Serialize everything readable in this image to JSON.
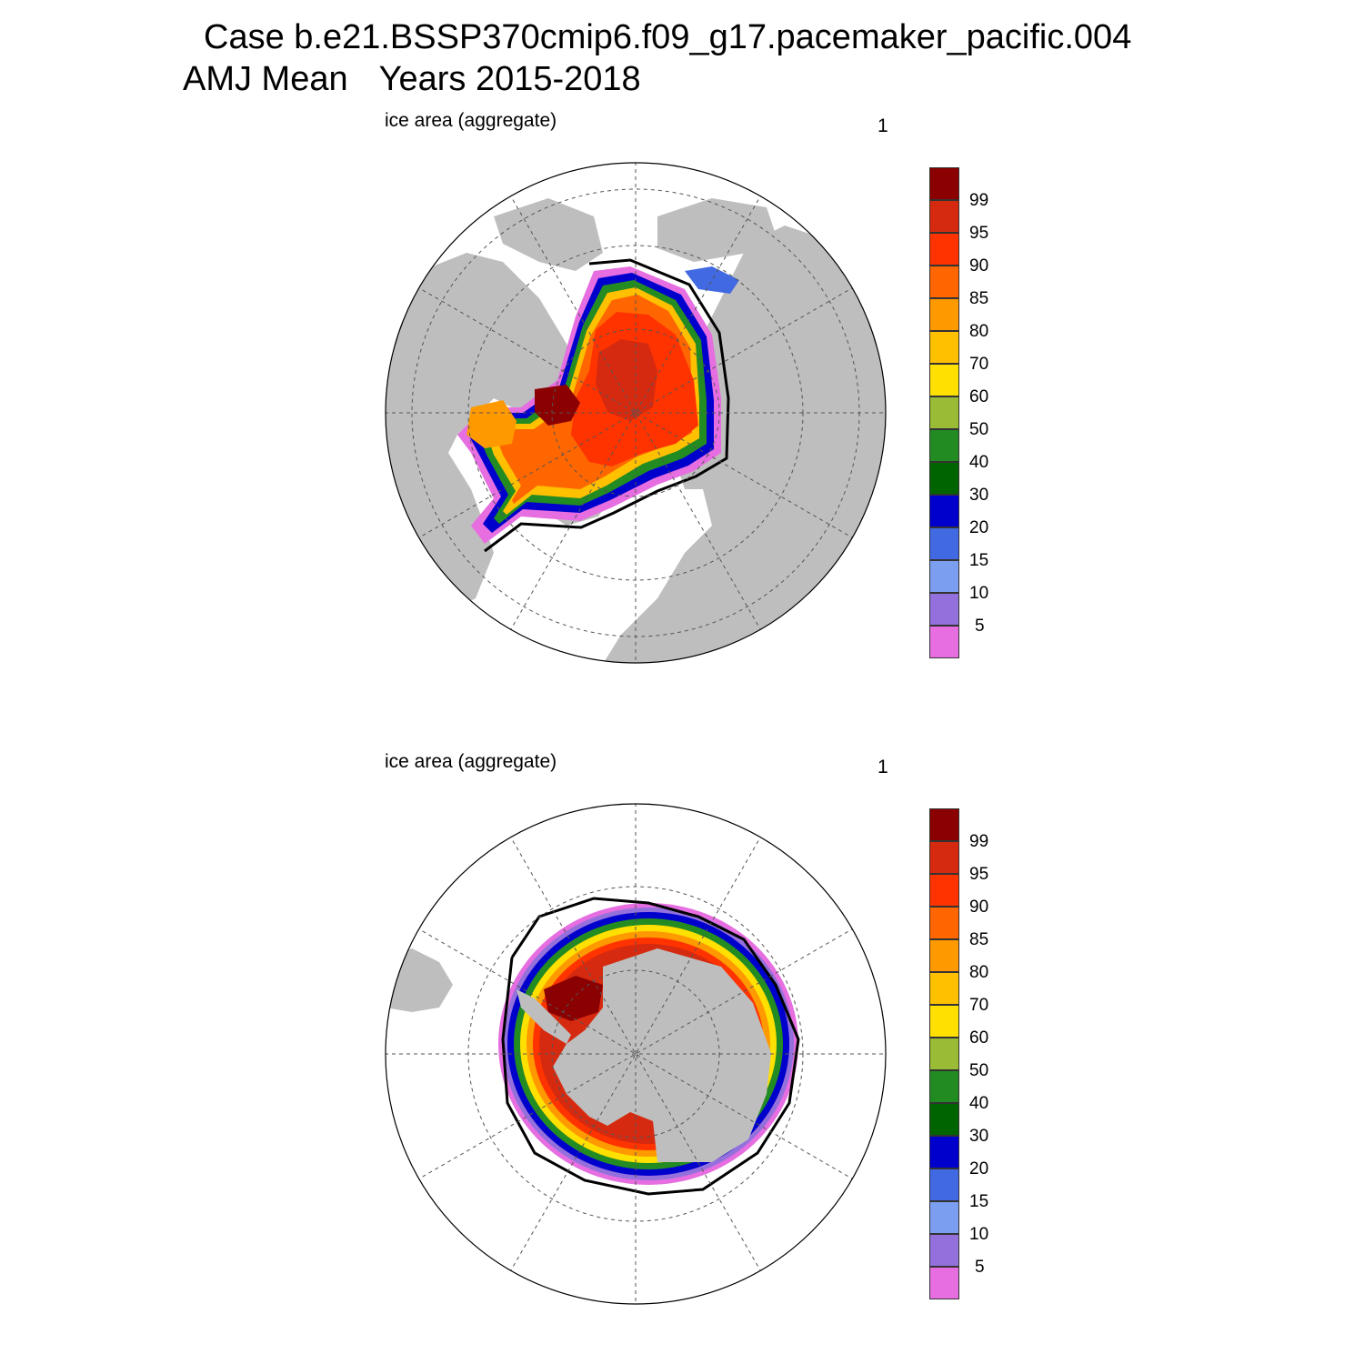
{
  "title": {
    "line1": "Case b.e21.BSSP370cmip6.f09_g17.pacemaker_pacific.004",
    "line2_season": "AMJ Mean",
    "line2_years": "Years 2015-2018"
  },
  "colors": {
    "land": "#bebebe",
    "grid": "#555555",
    "levels": [
      "#e66ee0",
      "#9370db",
      "#7b9ef0",
      "#4169e1",
      "#0000cd",
      "#006400",
      "#228b22",
      "#9abb36",
      "#ffe000",
      "#ffc000",
      "#ff9900",
      "#ff6600",
      "#ff3300",
      "#d62a10",
      "#8b0000"
    ]
  },
  "colorbar": {
    "labels": [
      "99",
      "95",
      "90",
      "85",
      "80",
      "70",
      "60",
      "50",
      "40",
      "30",
      "20",
      "15",
      "10",
      "5"
    ]
  },
  "panels": [
    {
      "id": "arctic",
      "label": "ice area  (aggregate)",
      "number": "1"
    },
    {
      "id": "antarctic",
      "label": "ice area  (aggregate)",
      "number": "1"
    }
  ]
}
